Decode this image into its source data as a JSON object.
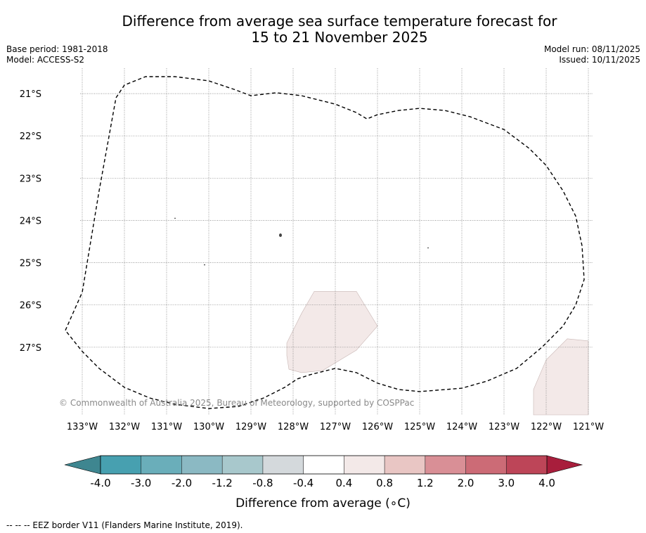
{
  "title": {
    "line1": "Difference from average sea surface temperature forecast for",
    "line2": "15 to 21 November 2025"
  },
  "meta": {
    "base_period": "Base period: 1981-2018",
    "model": "Model: ACCESS-S2",
    "model_run": "Model run: 08/11/2025",
    "issued": "Issued: 10/11/2025"
  },
  "map": {
    "lon_range": [
      -133.55,
      -120.9
    ],
    "lat_range": [
      -28.6,
      -20.4
    ],
    "lon_ticks": [
      {
        "value": -133,
        "label": "133°W"
      },
      {
        "value": -132,
        "label": "132°W"
      },
      {
        "value": -131,
        "label": "131°W"
      },
      {
        "value": -130,
        "label": "130°W"
      },
      {
        "value": -129,
        "label": "129°W"
      },
      {
        "value": -128,
        "label": "128°W"
      },
      {
        "value": -127,
        "label": "127°W"
      },
      {
        "value": -126,
        "label": "126°W"
      },
      {
        "value": -125,
        "label": "125°W"
      },
      {
        "value": -124,
        "label": "124°W"
      },
      {
        "value": -123,
        "label": "123°W"
      },
      {
        "value": -122,
        "label": "122°W"
      },
      {
        "value": -121,
        "label": "121°W"
      }
    ],
    "lat_ticks": [
      {
        "value": -21,
        "label": "21°S"
      },
      {
        "value": -22,
        "label": "22°S"
      },
      {
        "value": -23,
        "label": "23°S"
      },
      {
        "value": -24,
        "label": "24°S"
      },
      {
        "value": -25,
        "label": "25°S"
      },
      {
        "value": -26,
        "label": "26°S"
      },
      {
        "value": -27,
        "label": "27°S"
      }
    ],
    "eez_border": [
      [
        -133.4,
        -26.6
      ],
      [
        -133.0,
        -25.7
      ],
      [
        -132.6,
        -23.3
      ],
      [
        -132.2,
        -21.1
      ],
      [
        -132.0,
        -20.8
      ],
      [
        -131.5,
        -20.6
      ],
      [
        -130.8,
        -20.6
      ],
      [
        -130.0,
        -20.7
      ],
      [
        -129.4,
        -20.9
      ],
      [
        -129.0,
        -21.05
      ],
      [
        -128.4,
        -20.98
      ],
      [
        -127.8,
        -21.05
      ],
      [
        -127.0,
        -21.25
      ],
      [
        -126.5,
        -21.45
      ],
      [
        -126.25,
        -21.6
      ],
      [
        -126.0,
        -21.5
      ],
      [
        -125.5,
        -21.4
      ],
      [
        -125.0,
        -21.35
      ],
      [
        -124.4,
        -21.4
      ],
      [
        -123.8,
        -21.55
      ],
      [
        -123.0,
        -21.85
      ],
      [
        -122.4,
        -22.3
      ],
      [
        -122.0,
        -22.7
      ],
      [
        -121.6,
        -23.3
      ],
      [
        -121.3,
        -23.9
      ],
      [
        -121.15,
        -24.6
      ],
      [
        -121.1,
        -25.4
      ],
      [
        -121.3,
        -26.0
      ],
      [
        -121.6,
        -26.5
      ],
      [
        -122.1,
        -27.0
      ],
      [
        -122.7,
        -27.5
      ],
      [
        -123.4,
        -27.8
      ],
      [
        -124.0,
        -27.97
      ],
      [
        -125.0,
        -28.05
      ],
      [
        -125.5,
        -28.0
      ],
      [
        -126.0,
        -27.85
      ],
      [
        -126.5,
        -27.6
      ],
      [
        -127.0,
        -27.5
      ],
      [
        -127.6,
        -27.65
      ],
      [
        -127.9,
        -27.75
      ],
      [
        -128.2,
        -27.95
      ],
      [
        -128.7,
        -28.2
      ],
      [
        -129.3,
        -28.4
      ],
      [
        -130.0,
        -28.45
      ],
      [
        -130.8,
        -28.35
      ],
      [
        -131.4,
        -28.2
      ],
      [
        -132.0,
        -27.95
      ],
      [
        -132.6,
        -27.5
      ],
      [
        -133.0,
        -27.1
      ],
      [
        -133.4,
        -26.6
      ]
    ],
    "anomaly_patches": [
      {
        "value_range": "0.4 to 0.8",
        "color": "#f3e9e8",
        "polygon": [
          [
            -127.5,
            -25.68
          ],
          [
            -126.5,
            -25.68
          ],
          [
            -126.0,
            -26.5
          ],
          [
            -126.5,
            -27.07
          ],
          [
            -127.3,
            -27.55
          ],
          [
            -127.8,
            -27.6
          ],
          [
            -128.1,
            -27.52
          ],
          [
            -128.15,
            -27.2
          ],
          [
            -128.15,
            -26.9
          ],
          [
            -127.8,
            -26.2
          ]
        ]
      },
      {
        "value_range": "0.4 to 0.8",
        "color": "#f3e9e8",
        "polygon": [
          [
            -121.0,
            -26.85
          ],
          [
            -121.5,
            -26.8
          ],
          [
            -122.0,
            -27.3
          ],
          [
            -122.3,
            -28.0
          ],
          [
            -122.3,
            -28.6
          ],
          [
            -121.0,
            -28.6
          ]
        ]
      }
    ],
    "islands": [
      {
        "lon": -128.3,
        "lat": -24.35
      },
      {
        "lon": -124.8,
        "lat": -24.65
      },
      {
        "lon": -130.1,
        "lat": -25.05
      },
      {
        "lon": -130.8,
        "lat": -23.95
      }
    ],
    "copyright": "© Commonwealth of Australia 2025, Bureau of Meteorology, supported by COSPPac"
  },
  "colorbar": {
    "label": "Difference from average (∘C)",
    "ticks": [
      "-4.0",
      "-3.0",
      "-2.0",
      "-1.2",
      "-0.8",
      "-0.4",
      "0.4",
      "0.8",
      "1.2",
      "2.0",
      "3.0",
      "4.0"
    ],
    "colors": [
      "#47a0b0",
      "#6aaeba",
      "#8bb9c3",
      "#a8c8cc",
      "#d4d9dc",
      "#ffffff",
      "#f3e9e8",
      "#e9c6c4",
      "#d98f96",
      "#cc6b76",
      "#bd4558"
    ],
    "under_color": "#3e8690",
    "over_color": "#a81e3c"
  },
  "footnote": "--  --  -- EEZ border V11 (Flanders Marine Institute, 2019)."
}
